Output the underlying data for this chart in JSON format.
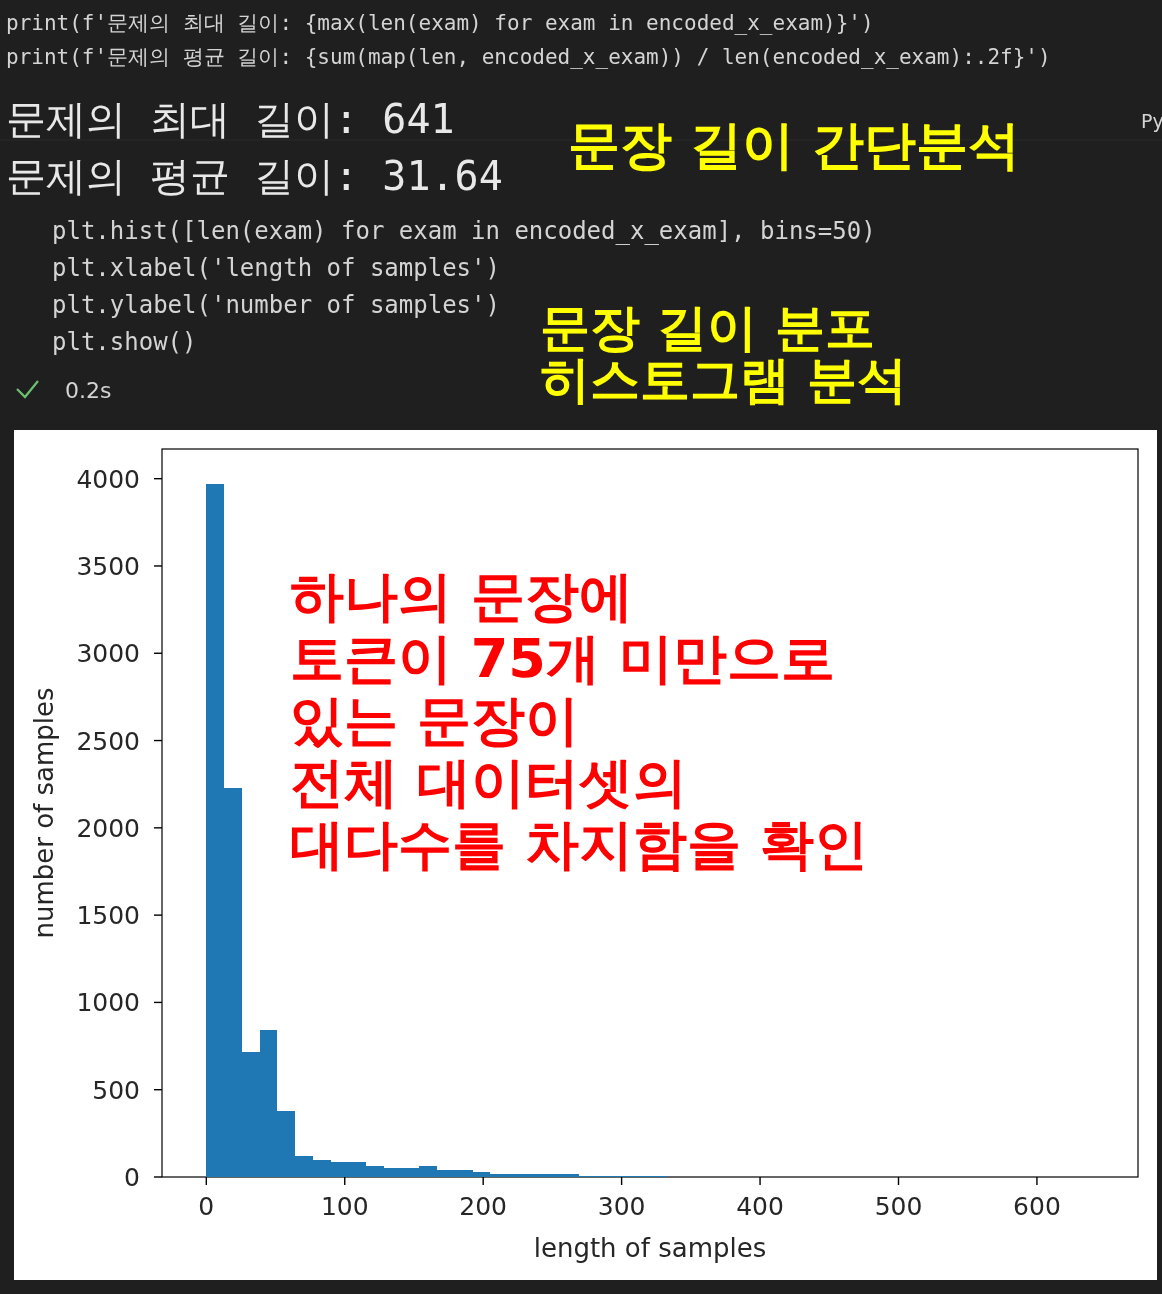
{
  "chart_data": {
    "type": "histogram",
    "xlabel": "length of samples",
    "ylabel": "number of samples",
    "bins": [
      0,
      12.82,
      25.64,
      38.46,
      51.28,
      64.1,
      76.92,
      89.74,
      102.56,
      115.38,
      128.2,
      141.02,
      153.84,
      166.66,
      179.48,
      192.3,
      205.12,
      217.94,
      230.76,
      243.58,
      256.4,
      269.22,
      282.04,
      294.86,
      307.68,
      320.5,
      333.32,
      346.14,
      358.96,
      371.78,
      384.6,
      397.42,
      410.24,
      423.06,
      435.88,
      448.7,
      461.52,
      474.34,
      487.16,
      499.98,
      512.8,
      525.62,
      538.44,
      551.26,
      564.08,
      576.9,
      589.72,
      602.54,
      615.36,
      628.18,
      641
    ],
    "values": [
      3971,
      2226,
      715,
      841,
      378,
      120,
      97,
      86,
      86,
      65,
      53,
      53,
      65,
      42,
      42,
      31,
      19,
      19,
      19,
      19,
      19,
      8,
      8,
      8,
      8,
      8,
      0,
      0,
      0,
      0,
      0,
      0,
      0,
      0,
      0,
      0,
      0,
      0,
      0,
      0,
      0,
      0,
      0,
      0,
      0,
      0,
      0,
      0,
      0,
      0
    ],
    "color": "#1f77b4",
    "xlim": [
      -32,
      673
    ],
    "ylim": [
      0,
      4170
    ],
    "xticks": [
      0,
      100,
      200,
      300,
      400,
      500,
      600
    ],
    "yticks": [
      0,
      500,
      1000,
      1500,
      2000,
      2500,
      3000,
      3500,
      4000
    ],
    "annotations": [
      "print(f'문제의 최대 길이: {max(len(exam) for exam in encoded_x_exam)}')",
      "print(f'문제의 평균 길이: {sum(map(len, encoded_x_exam)) / len(encoded_x_exam):.2f}')",
      "문제의 최대 길이: 641",
      "문제의 평균 길이: 31.64",
      "Py",
      "문장 길이 간단분석",
      "plt.hist([len(exam) for exam in encoded_x_exam], bins=50)",
      "plt.xlabel('length of samples')",
      "plt.ylabel('number of samples')",
      "plt.show()",
      "0.2s",
      "문장 길이 분포\n히스토그램 분석",
      "하나의 문장에\n토큰이 75개 미만으로\n있는 문장이\n전체 대이터셋의\n대다수를 차지함을 확인"
    ]
  }
}
